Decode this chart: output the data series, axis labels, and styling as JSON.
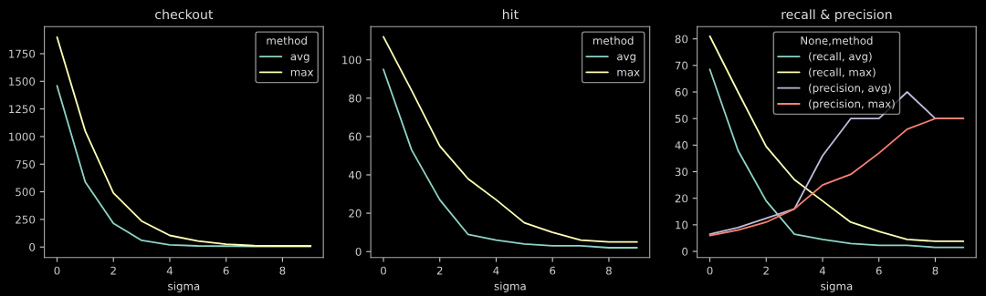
{
  "chart_data": [
    {
      "type": "line",
      "title": "checkout",
      "xlabel": "sigma",
      "legend_title": "method",
      "legend": "top right",
      "grid": false,
      "x": [
        0,
        1,
        2,
        3,
        4,
        5,
        6,
        7,
        8,
        9
      ],
      "xlim": [
        -0.45,
        9.45
      ],
      "xticks": [
        0,
        2,
        4,
        6,
        8
      ],
      "ylim": [
        -95,
        1995
      ],
      "yticks": [
        0,
        250,
        500,
        750,
        1000,
        1250,
        1500,
        1750
      ],
      "series": [
        {
          "name": "avg",
          "color": "#8dd3c7",
          "values": [
            1460,
            590,
            215,
            60,
            20,
            10,
            8,
            6,
            5,
            5
          ]
        },
        {
          "name": "max",
          "color": "#feffb3",
          "values": [
            1900,
            1050,
            490,
            235,
            105,
            55,
            25,
            12,
            10,
            10
          ]
        }
      ]
    },
    {
      "type": "line",
      "title": "hit",
      "xlabel": "sigma",
      "legend_title": "method",
      "legend": "top right",
      "grid": false,
      "x": [
        0,
        1,
        2,
        3,
        4,
        5,
        6,
        7,
        8,
        9
      ],
      "xlim": [
        -0.45,
        9.45
      ],
      "xticks": [
        0,
        2,
        4,
        6,
        8
      ],
      "ylim": [
        -3.1,
        117.3
      ],
      "yticks": [
        0,
        20,
        40,
        60,
        80,
        100
      ],
      "series": [
        {
          "name": "avg",
          "color": "#8dd3c7",
          "values": [
            95,
            53,
            27,
            9,
            6,
            4,
            3,
            3,
            2,
            2
          ]
        },
        {
          "name": "max",
          "color": "#feffb3",
          "values": [
            112,
            84,
            55,
            38,
            27,
            15,
            10,
            6,
            5,
            5
          ]
        }
      ]
    },
    {
      "type": "line",
      "title": "recall & precision",
      "xlabel": "sigma",
      "legend_title": "None,method",
      "legend": "top",
      "grid": false,
      "x": [
        0,
        1,
        2,
        3,
        4,
        5,
        6,
        7,
        8,
        9
      ],
      "xlim": [
        -0.45,
        9.45
      ],
      "xticks": [
        0,
        2,
        4,
        6,
        8
      ],
      "ylim": [
        -2.3,
        84.6
      ],
      "yticks": [
        0,
        10,
        20,
        30,
        40,
        50,
        60,
        70,
        80
      ],
      "series": [
        {
          "name": "(recall, avg)",
          "color": "#8dd3c7",
          "values": [
            68.5,
            38,
            19,
            6.5,
            4.5,
            3,
            2.3,
            2.3,
            1.5,
            1.5
          ]
        },
        {
          "name": "(recall, max)",
          "color": "#feffb3",
          "values": [
            81,
            60,
            39.5,
            27,
            19,
            11,
            7.5,
            4.5,
            3.8,
            3.8
          ]
        },
        {
          "name": "(precision, avg)",
          "color": "#bfbbd9",
          "values": [
            6.5,
            9,
            12.5,
            16,
            36,
            50,
            50,
            60,
            50,
            50
          ]
        },
        {
          "name": "(precision, max)",
          "color": "#fa8174",
          "values": [
            6,
            8,
            11,
            16,
            25,
            29,
            37,
            46,
            50,
            50
          ]
        }
      ]
    }
  ]
}
